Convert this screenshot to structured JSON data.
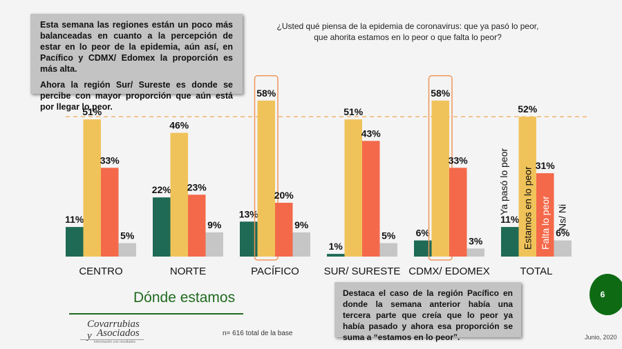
{
  "notes": {
    "top": [
      "Esta semana las regiones están un poco más balanceadas en cuanto a la percepción de estar en lo peor de la epidemia, aún así, en Pacífico y CDMX/ Edomex la proporción es más alta.",
      "Ahora la región Sur/ Sureste es donde se percibe con mayor proporción que aún está por llegar lo peor."
    ],
    "bottom": "Destaca el caso de la región Pacífico en donde la semana anterior había una tercera parte  que creía que lo peor ya había pasado y ahora esa proporción se suma a “estamos en lo peor”."
  },
  "question": "¿Usted qué piensa de la epidemia de coronavirus: que ya pasó lo peor, que ahorita estamos en lo peor o que falta lo peor?",
  "section_title": "Dónde estamos",
  "base_note": "n= 616 total de la base",
  "date": "Junio, 2020",
  "page_number": "6",
  "logo": {
    "line1": "Covarrubias y",
    "line2": "Asociados",
    "tagline": "Información con resultados"
  },
  "colors": {
    "ya_paso": "#1f6a55",
    "estamos": "#f0c35a",
    "falta": "#f4694a",
    "nsni": "#c6c6c6",
    "highlight": "#f0965a",
    "reference_line": "#f2b56b"
  },
  "chart_data": {
    "type": "bar",
    "categories": [
      "CENTRO",
      "NORTE",
      "PACÍFICO",
      "SUR/ SURESTE",
      "CDMX/ EDOMEX",
      "TOTAL"
    ],
    "series": [
      {
        "name": "Ya pasó lo peor",
        "values": [
          11,
          22,
          13,
          1,
          6,
          11
        ]
      },
      {
        "name": "Estamos en lo peor",
        "values": [
          51,
          46,
          58,
          51,
          58,
          52
        ]
      },
      {
        "name": "Falta lo peor",
        "values": [
          33,
          23,
          20,
          43,
          33,
          31
        ]
      },
      {
        "name": "Ns/ Ni",
        "values": [
          5,
          9,
          9,
          5,
          3,
          6
        ]
      }
    ],
    "value_suffix": "%",
    "reference_line_value": 52,
    "highlighted": [
      {
        "category": "PACÍFICO",
        "series": "Estamos en lo peor"
      },
      {
        "category": "CDMX/ EDOMEX",
        "series": "Estamos en lo peor"
      }
    ],
    "legend_placement": "inline-vertical-labels-on-TOTAL",
    "ylim": [
      0,
      60
    ],
    "grid": false
  }
}
